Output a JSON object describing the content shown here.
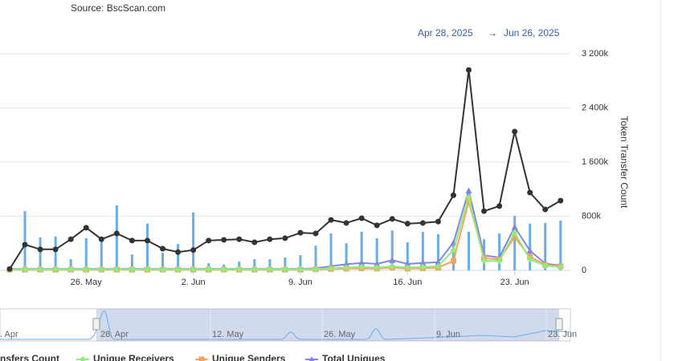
{
  "chart_data": {
    "type": "line",
    "subtitle": "Source: BscScan.com",
    "range_start": "Apr 28, 2025",
    "range_separator": "→",
    "range_end": "Jun 26, 2025",
    "y_axis_label": "Token Transfer Count",
    "x": [
      "2025-05-21",
      "2025-05-22",
      "2025-05-23",
      "2025-05-24",
      "2025-05-25",
      "2025-05-26",
      "2025-05-27",
      "2025-05-28",
      "2025-05-29",
      "2025-05-30",
      "2025-05-31",
      "2025-06-01",
      "2025-06-02",
      "2025-06-03",
      "2025-06-04",
      "2025-06-05",
      "2025-06-06",
      "2025-06-07",
      "2025-06-08",
      "2025-06-09",
      "2025-06-10",
      "2025-06-11",
      "2025-06-12",
      "2025-06-13",
      "2025-06-14",
      "2025-06-15",
      "2025-06-16",
      "2025-06-17",
      "2025-06-18",
      "2025-06-19",
      "2025-06-20",
      "2025-06-21",
      "2025-06-22",
      "2025-06-23",
      "2025-06-24",
      "2025-06-25",
      "2025-06-26"
    ],
    "xticks": [
      {
        "value": "2025-05-26",
        "label": "26. May"
      },
      {
        "value": "2025-06-02",
        "label": "2. Jun"
      },
      {
        "value": "2025-06-09",
        "label": "9. Jun"
      },
      {
        "value": "2025-06-16",
        "label": "16. Jun"
      },
      {
        "value": "2025-06-23",
        "label": "23. Jun"
      }
    ],
    "ylim": [
      0,
      3200000
    ],
    "yticks": [
      {
        "value": 0,
        "label": "0"
      },
      {
        "value": 800000,
        "label": "800k"
      },
      {
        "value": 1600000,
        "label": "1 600k"
      },
      {
        "value": 2400000,
        "label": "2 400k"
      },
      {
        "value": 3200000,
        "label": "3 200k"
      }
    ],
    "grid": true,
    "bars": {
      "color": "#6aaee8",
      "values": [
        0,
        875000,
        485000,
        500000,
        165000,
        475000,
        440000,
        960000,
        235000,
        690000,
        260000,
        390000,
        855000,
        105000,
        85000,
        130000,
        165000,
        165000,
        190000,
        225000,
        365000,
        545000,
        400000,
        570000,
        475000,
        590000,
        415000,
        570000,
        535000,
        400000,
        570000,
        460000,
        545000,
        805000,
        690000,
        700000,
        735000
      ]
    },
    "series": [
      {
        "name": "nsfers Count",
        "color": "#333333",
        "marker": "circle",
        "values": [
          20000,
          380000,
          310000,
          310000,
          460000,
          630000,
          460000,
          545000,
          440000,
          440000,
          320000,
          270000,
          300000,
          440000,
          450000,
          460000,
          415000,
          460000,
          475000,
          555000,
          545000,
          745000,
          700000,
          770000,
          665000,
          760000,
          690000,
          700000,
          720000,
          1110000,
          2960000,
          875000,
          950000,
          2050000,
          1150000,
          900000,
          1030000
        ]
      },
      {
        "name": "Unique Receivers",
        "color": "#90ed7d",
        "marker": "diamond",
        "values": [
          15000,
          15000,
          15000,
          15000,
          15000,
          15000,
          15000,
          15000,
          15000,
          15000,
          15000,
          15000,
          15000,
          15000,
          15000,
          15000,
          15000,
          15000,
          15000,
          15000,
          20000,
          30000,
          40000,
          50000,
          40000,
          60000,
          40000,
          50000,
          60000,
          300000,
          1080000,
          140000,
          140000,
          560000,
          160000,
          70000,
          50000
        ]
      },
      {
        "name": "Unique Senders",
        "color": "#f7a35c",
        "marker": "square",
        "values": [
          10000,
          10000,
          10000,
          10000,
          10000,
          10000,
          10000,
          10000,
          10000,
          10000,
          10000,
          10000,
          10000,
          10000,
          10000,
          10000,
          10000,
          10000,
          10000,
          10000,
          15000,
          20000,
          25000,
          30000,
          25000,
          40000,
          25000,
          30000,
          40000,
          140000,
          1020000,
          180000,
          160000,
          490000,
          200000,
          80000,
          60000
        ]
      },
      {
        "name": "Total Uniques",
        "color": "#8085e9",
        "marker": "triangle",
        "values": [
          20000,
          20000,
          20000,
          20000,
          20000,
          20000,
          20000,
          20000,
          20000,
          20000,
          20000,
          20000,
          20000,
          20000,
          20000,
          20000,
          20000,
          20000,
          20000,
          20000,
          30000,
          60000,
          90000,
          110000,
          95000,
          150000,
          95000,
          110000,
          120000,
          410000,
          1180000,
          220000,
          190000,
          640000,
          290000,
          100000,
          70000
        ]
      }
    ],
    "navigator_labels": [
      ". Apr",
      "28. Apr",
      "12. May",
      "26. May",
      "9. Jun",
      "23. Jun"
    ]
  }
}
